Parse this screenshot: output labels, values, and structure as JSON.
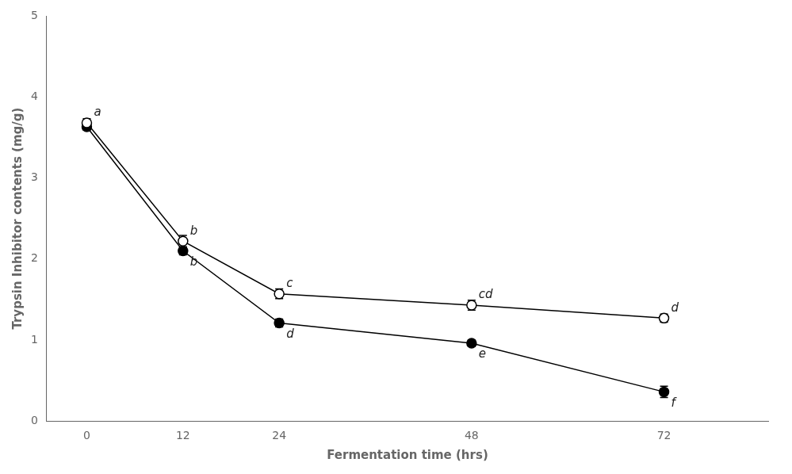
{
  "chart_data": {
    "type": "line",
    "x_label": "Fermentation time (hrs)",
    "y_label": "Trypsin Inhibitor contents (mg/g)",
    "x": [
      0,
      12,
      24,
      48,
      72
    ],
    "series": [
      {
        "color": "#000000",
        "marker": "circle_open",
        "values": [
          3.68,
          2.22,
          1.57,
          1.43,
          1.27
        ],
        "errors": [
          0.05,
          0.07,
          0.06,
          0.06,
          0.05
        ],
        "annotations": [
          "a",
          "b",
          "c",
          "cd",
          "d"
        ]
      },
      {
        "color": "#000000",
        "marker": "circle_filled",
        "values": [
          3.63,
          2.1,
          1.21,
          0.96,
          0.36
        ],
        "errors": [
          0.04,
          0.05,
          0.05,
          0.04,
          0.07
        ],
        "annotations": [
          null,
          "b",
          "d",
          "e",
          "f"
        ]
      }
    ],
    "xlim": [
      -5,
      85
    ],
    "xticks": [
      0,
      12,
      24,
      48,
      72
    ],
    "ylim": [
      0,
      5
    ],
    "yticks": [
      0,
      1,
      2,
      3,
      4,
      5
    ],
    "grid": false
  }
}
